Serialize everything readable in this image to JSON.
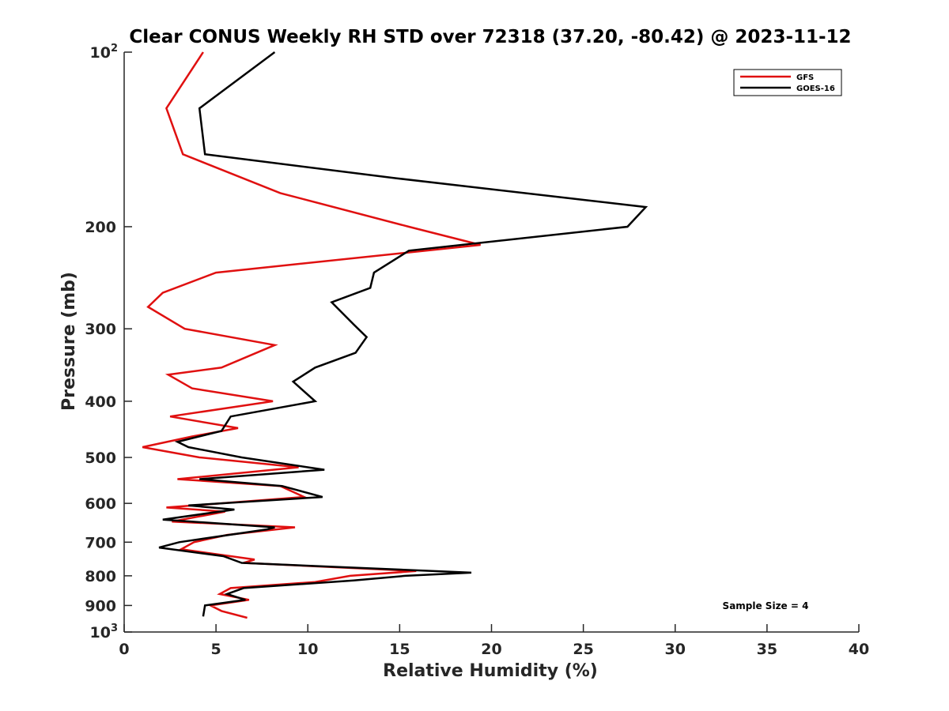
{
  "chart_data": {
    "type": "line",
    "title": "Clear CONUS Weekly RH STD over 72318 (37.20, -80.42) @ 2023-11-12",
    "xlabel": "Relative Humidity (%)",
    "ylabel": "Pressure (mb)",
    "xlim": [
      0,
      40
    ],
    "ylim": [
      100,
      1000
    ],
    "y_scale": "log",
    "y_reversed": true,
    "x_ticks": [
      0,
      5,
      10,
      15,
      20,
      25,
      30,
      35,
      40
    ],
    "y_ticks": [
      {
        "value": 100,
        "base": "10",
        "exp": "2"
      },
      {
        "value": 200,
        "label": "200"
      },
      {
        "value": 300,
        "label": "300"
      },
      {
        "value": 400,
        "label": "400"
      },
      {
        "value": 500,
        "label": "500"
      },
      {
        "value": 600,
        "label": "600"
      },
      {
        "value": 700,
        "label": "700"
      },
      {
        "value": 800,
        "label": "800"
      },
      {
        "value": 900,
        "label": "900"
      },
      {
        "value": 1000,
        "base": "10",
        "exp": "3"
      }
    ],
    "grid": false,
    "legend_position": "top-right",
    "series": [
      {
        "name": "GFS",
        "color": "#e01010",
        "points": [
          [
            4.3,
            100
          ],
          [
            2.3,
            125
          ],
          [
            3.2,
            150
          ],
          [
            8.5,
            175
          ],
          [
            15.5,
            200
          ],
          [
            19.4,
            215
          ],
          [
            5.0,
            240
          ],
          [
            2.1,
            260
          ],
          [
            1.3,
            275
          ],
          [
            3.3,
            300
          ],
          [
            8.2,
            320
          ],
          [
            5.3,
            350
          ],
          [
            2.4,
            360
          ],
          [
            3.7,
            380
          ],
          [
            8.1,
            400
          ],
          [
            2.5,
            425
          ],
          [
            6.2,
            445
          ],
          [
            3.7,
            460
          ],
          [
            1.0,
            480
          ],
          [
            4.1,
            500
          ],
          [
            9.5,
            520
          ],
          [
            2.9,
            545
          ],
          [
            8.5,
            560
          ],
          [
            9.8,
            585
          ],
          [
            2.3,
            610
          ],
          [
            5.5,
            620
          ],
          [
            2.6,
            645
          ],
          [
            9.3,
            660
          ],
          [
            5.6,
            680
          ],
          [
            3.8,
            700
          ],
          [
            3.1,
            720
          ],
          [
            7.1,
            750
          ],
          [
            6.5,
            760
          ],
          [
            15.9,
            785
          ],
          [
            12.3,
            800
          ],
          [
            10.4,
            820
          ],
          [
            5.8,
            840
          ],
          [
            5.2,
            860
          ],
          [
            6.8,
            880
          ],
          [
            4.7,
            900
          ],
          [
            5.3,
            920
          ],
          [
            6.7,
            945
          ]
        ]
      },
      {
        "name": "GOES-16",
        "color": "#000000",
        "points": [
          [
            8.2,
            100
          ],
          [
            4.1,
            125
          ],
          [
            4.4,
            150
          ],
          [
            14.8,
            165
          ],
          [
            28.4,
            185
          ],
          [
            27.4,
            200
          ],
          [
            15.5,
            220
          ],
          [
            13.6,
            240
          ],
          [
            13.4,
            255
          ],
          [
            11.3,
            270
          ],
          [
            12.5,
            295
          ],
          [
            13.2,
            310
          ],
          [
            12.6,
            330
          ],
          [
            10.4,
            350
          ],
          [
            9.2,
            370
          ],
          [
            10.4,
            400
          ],
          [
            5.8,
            425
          ],
          [
            5.3,
            450
          ],
          [
            2.9,
            470
          ],
          [
            3.5,
            480
          ],
          [
            6.4,
            500
          ],
          [
            10.9,
            525
          ],
          [
            4.1,
            545
          ],
          [
            8.6,
            560
          ],
          [
            10.8,
            585
          ],
          [
            3.5,
            605
          ],
          [
            6.0,
            615
          ],
          [
            2.1,
            640
          ],
          [
            8.2,
            660
          ],
          [
            7.8,
            665
          ],
          [
            3.0,
            700
          ],
          [
            1.9,
            715
          ],
          [
            5.4,
            740
          ],
          [
            6.4,
            760
          ],
          [
            18.9,
            790
          ],
          [
            15.3,
            800
          ],
          [
            12.5,
            815
          ],
          [
            6.5,
            840
          ],
          [
            5.6,
            860
          ],
          [
            6.6,
            880
          ],
          [
            4.4,
            900
          ],
          [
            4.3,
            940
          ]
        ]
      }
    ],
    "annotations": [
      "Sample Size = 4"
    ]
  }
}
